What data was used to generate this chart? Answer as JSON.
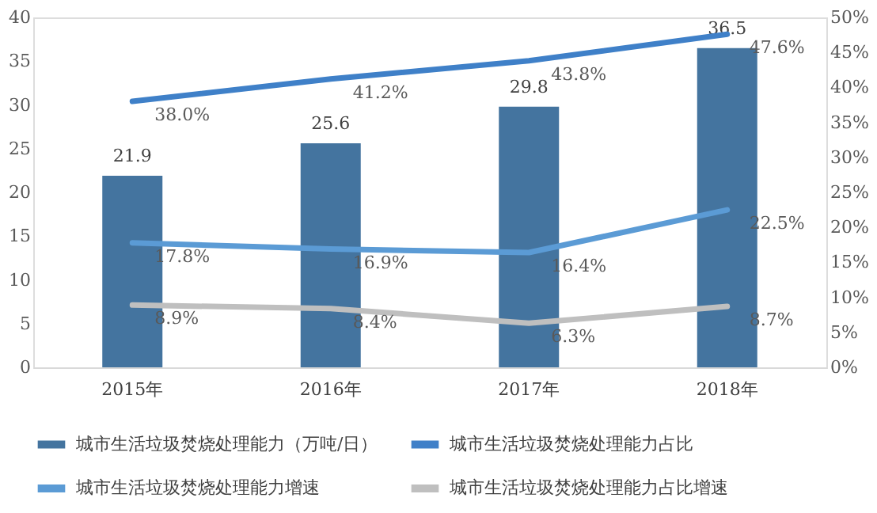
{
  "chart_data": {
    "type": "bar",
    "categories": [
      "2015年",
      "2016年",
      "2017年",
      "2018年"
    ],
    "series": [
      {
        "name": "城市生活垃圾焚烧处理能力（万吨/日）",
        "color": "#44749f",
        "values": [
          21.9,
          25.6,
          29.8,
          36.5
        ]
      },
      {
        "name": "城市生活垃圾焚烧处理能力占比",
        "type": "line",
        "axis": "y2",
        "color": "#3f80c8",
        "values": [
          38.0,
          41.2,
          43.8,
          47.6
        ],
        "value_labels": [
          "38.0%",
          "41.2%",
          "43.8%",
          "47.6%"
        ]
      },
      {
        "name": "城市生活垃圾焚烧处理能力增速",
        "type": "line",
        "axis": "y2",
        "color": "#5b9bd5",
        "values": [
          17.8,
          16.9,
          16.4,
          22.5
        ],
        "value_labels": [
          "17.8%",
          "16.9%",
          "16.4%",
          "22.5%"
        ]
      },
      {
        "name": "城市生活垃圾焚烧处理能力占比增速",
        "type": "line",
        "axis": "y2",
        "color": "#bfbfbf",
        "values": [
          8.9,
          8.4,
          6.3,
          8.7
        ],
        "value_labels": [
          "8.9%",
          "8.4%",
          "6.3%",
          "8.7%"
        ]
      }
    ],
    "data_labels": true,
    "ylim": [
      0,
      40
    ],
    "yticks": [
      0,
      5,
      10,
      15,
      20,
      25,
      30,
      35,
      40
    ],
    "y2lim": [
      0,
      50
    ],
    "y2ticks": [
      {
        "value": 0,
        "label": "0%"
      },
      {
        "value": 5,
        "label": "5%"
      },
      {
        "value": 10,
        "label": "10%"
      },
      {
        "value": 15,
        "label": "15%"
      },
      {
        "value": 20,
        "label": "20%"
      },
      {
        "value": 25,
        "label": "25%"
      },
      {
        "value": 30,
        "label": "30%"
      },
      {
        "value": 35,
        "label": "35%"
      },
      {
        "value": 40,
        "label": "40%"
      },
      {
        "value": 45,
        "label": "45%"
      },
      {
        "value": 50,
        "label": "50%"
      }
    ],
    "grid": false,
    "legend": "bottom"
  }
}
